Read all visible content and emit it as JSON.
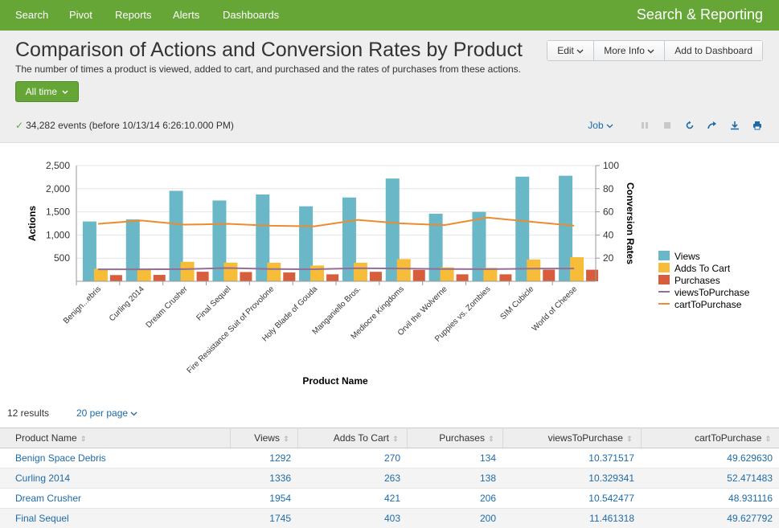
{
  "nav": {
    "items": [
      "Search",
      "Pivot",
      "Reports",
      "Alerts",
      "Dashboards"
    ],
    "app_title": "Search & Reporting"
  },
  "page": {
    "title": "Comparison of Actions and Conversion Rates by Product",
    "subtitle": "The number of times a product is viewed, added to cart, and purchased and the rates of purchases from these actions.",
    "time_range": "All time",
    "edit_label": "Edit",
    "more_info_label": "More Info",
    "add_dashboard_label": "Add to Dashboard"
  },
  "job": {
    "events_text": "34,282 events (before 10/13/14 6:26:10.000 PM)",
    "job_label": "Job"
  },
  "chart_data": {
    "type": "bar",
    "categories": [
      "Benign...ebris",
      "Curling 2014",
      "Dream Crusher",
      "Final Sequel",
      "Fire Resistance Suit of Provolone",
      "Holy Blade of Gouda",
      "Manganiello Bros.",
      "Mediocre Kingdoms",
      "Orvil the Wolverne",
      "Puppies vs. Zombies",
      "SIM Cubicle",
      "World of Cheese"
    ],
    "series": [
      {
        "name": "Views",
        "axis": "left",
        "color": "#6ab7c7",
        "values": [
          1292,
          1336,
          1954,
          1745,
          1875,
          1620,
          1810,
          2220,
          1460,
          1500,
          2260,
          2280
        ]
      },
      {
        "name": "Adds To Cart",
        "axis": "left",
        "color": "#f7bc38",
        "values": [
          270,
          263,
          421,
          403,
          400,
          340,
          400,
          480,
          300,
          290,
          470,
          520
        ]
      },
      {
        "name": "Purchases",
        "axis": "left",
        "color": "#d85d3c",
        "values": [
          134,
          138,
          206,
          200,
          190,
          150,
          205,
          245,
          150,
          150,
          250,
          250
        ]
      },
      {
        "name": "viewsToPurchase",
        "axis": "right",
        "type": "line",
        "color": "#956d95",
        "values": [
          10.371517,
          10.329341,
          10.542477,
          11.461318,
          10.6,
          10.4,
          11.3,
          11.0,
          10.6,
          10.5,
          10.9,
          11.0
        ]
      },
      {
        "name": "cartToPurchase",
        "axis": "right",
        "type": "line",
        "color": "#ed8b2f",
        "values": [
          49.62963,
          52.471483,
          48.931116,
          49.627792,
          48.0,
          47.5,
          53.0,
          50.0,
          48.5,
          55.0,
          51.5,
          48.0
        ]
      }
    ],
    "ylabel": "Actions",
    "y2label": "Conversion Rates",
    "xlabel": "Product Name",
    "ylim": [
      0,
      2500
    ],
    "y2lim": [
      0,
      100
    ],
    "yticks": [
      "500",
      "1,000",
      "1,500",
      "2,000",
      "2,500"
    ],
    "y2ticks": [
      "20",
      "40",
      "60",
      "80",
      "100"
    ],
    "legend_position": "right"
  },
  "results": {
    "count_text": "12 results",
    "per_page": "20 per page"
  },
  "table": {
    "columns": [
      "Product Name",
      "Views",
      "Adds To Cart",
      "Purchases",
      "viewsToPurchase",
      "cartToPurchase"
    ],
    "rows": [
      [
        "Benign Space Debris",
        "1292",
        "270",
        "134",
        "10.371517",
        "49.629630"
      ],
      [
        "Curling 2014",
        "1336",
        "263",
        "138",
        "10.329341",
        "52.471483"
      ],
      [
        "Dream Crusher",
        "1954",
        "421",
        "206",
        "10.542477",
        "48.931116"
      ],
      [
        "Final Sequel",
        "1745",
        "403",
        "200",
        "11.461318",
        "49.627792"
      ]
    ]
  }
}
